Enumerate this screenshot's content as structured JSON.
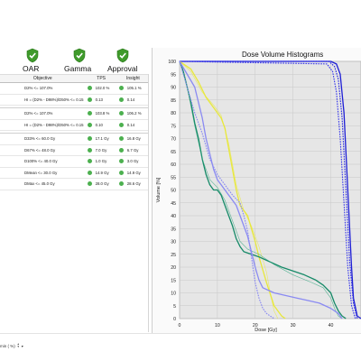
{
  "header": {
    "items": [
      {
        "label": "OAR",
        "status": "pass"
      },
      {
        "label": "Gamma",
        "status": "pass"
      },
      {
        "label": "Approval",
        "status": "pass"
      }
    ]
  },
  "table": {
    "columns": [
      "Objective",
      "TPS",
      "Insight"
    ],
    "groups": [
      [
        {
          "objective": "D2% <= 107.0%",
          "tps": "102.0 %",
          "insight": "105.1 %"
        },
        {
          "objective": "HI = (D2% - D98%)/D50% <= 0.15",
          "tps": "0.13",
          "insight": "0.14"
        }
      ],
      [
        {
          "objective": "D2% <= 107.0%",
          "tps": "103.8 %",
          "insight": "106.2 %"
        },
        {
          "objective": "HI = (D2% - D98%)/D50% <= 0.15",
          "tps": "0.10",
          "insight": "0.14"
        }
      ],
      [
        {
          "objective": "D33% <= 60.0 Gy",
          "tps": "17.1 Gy",
          "insight": "16.8 Gy"
        },
        {
          "objective": "D67% <= 48.0 Gy",
          "tps": "7.0 Gy",
          "insight": "6.7 Gy"
        },
        {
          "objective": "D100% <= 40.0 Gy",
          "tps": "1.0 Gy",
          "insight": "3.0 Gy"
        },
        {
          "objective": "DMean <= 30.0 Gy",
          "tps": "14.9 Gy",
          "insight": "14.9 Gy"
        },
        {
          "objective": "DMax <= 45.0 Gy",
          "tps": "28.0 Gy",
          "insight": "28.6 Gy"
        }
      ]
    ]
  },
  "chart_data": {
    "type": "line",
    "title": "Dose Volume Histograms",
    "xlabel": "Dose [Gy]",
    "ylabel": "Volume [%]",
    "xlim": [
      0,
      48
    ],
    "ylim": [
      0,
      100
    ],
    "x_ticks": [
      0,
      10,
      20,
      30,
      40
    ],
    "y_ticks": [
      0,
      5,
      10,
      15,
      20,
      25,
      30,
      35,
      40,
      45,
      50,
      55,
      60,
      65,
      70,
      75,
      80,
      85,
      90,
      95,
      100
    ],
    "grid": true,
    "series": [
      {
        "color": "#1f1fd6",
        "style": "solid",
        "points": [
          [
            0,
            100
          ],
          [
            40,
            100
          ],
          [
            41.5,
            99
          ],
          [
            42.5,
            95
          ],
          [
            43.5,
            80
          ],
          [
            44.5,
            50
          ],
          [
            45.5,
            20
          ],
          [
            46,
            8
          ],
          [
            47,
            1
          ],
          [
            48,
            0
          ]
        ]
      },
      {
        "color": "#2a2ae0",
        "style": "dots",
        "points": [
          [
            0,
            100
          ],
          [
            39.5,
            100
          ],
          [
            41,
            98
          ],
          [
            42,
            93
          ],
          [
            43,
            78
          ],
          [
            44,
            50
          ],
          [
            45,
            22
          ],
          [
            46,
            6
          ],
          [
            47,
            0
          ]
        ]
      },
      {
        "color": "#3a3aea",
        "style": "dots",
        "points": [
          [
            0,
            100
          ],
          [
            39,
            99
          ],
          [
            40.5,
            96
          ],
          [
            41.5,
            88
          ],
          [
            42.5,
            70
          ],
          [
            43.5,
            45
          ],
          [
            44.5,
            20
          ],
          [
            45.5,
            5
          ],
          [
            46.5,
            0
          ]
        ]
      },
      {
        "color": "#e8e83a",
        "style": "solid",
        "points": [
          [
            0,
            100
          ],
          [
            3,
            97
          ],
          [
            5,
            92
          ],
          [
            7,
            86
          ],
          [
            9,
            82
          ],
          [
            10,
            80
          ],
          [
            11,
            78
          ],
          [
            12,
            74
          ],
          [
            13,
            66
          ],
          [
            14,
            58
          ],
          [
            15,
            50
          ],
          [
            16,
            44
          ],
          [
            18,
            40
          ],
          [
            20,
            30
          ],
          [
            21,
            24
          ],
          [
            23,
            14
          ],
          [
            25,
            5
          ],
          [
            27,
            1
          ],
          [
            28,
            0
          ]
        ]
      },
      {
        "color": "#e8e83a",
        "style": "thin",
        "points": [
          [
            0,
            100
          ],
          [
            3,
            96
          ],
          [
            6,
            88
          ],
          [
            9,
            83
          ],
          [
            11,
            79
          ],
          [
            13,
            68
          ],
          [
            15,
            52
          ],
          [
            17,
            42
          ],
          [
            19,
            36
          ],
          [
            21,
            28
          ],
          [
            23,
            18
          ],
          [
            24,
            10
          ],
          [
            25,
            3
          ],
          [
            26,
            0
          ]
        ]
      },
      {
        "color": "#168a68",
        "style": "solid",
        "points": [
          [
            0,
            100
          ],
          [
            1,
            96
          ],
          [
            2,
            90
          ],
          [
            3,
            84
          ],
          [
            4,
            76
          ],
          [
            5,
            70
          ],
          [
            6,
            62
          ],
          [
            7,
            56
          ],
          [
            8,
            52
          ],
          [
            9,
            50
          ],
          [
            10,
            50
          ],
          [
            11,
            48
          ],
          [
            12,
            44
          ],
          [
            13,
            40
          ],
          [
            14,
            36
          ],
          [
            15,
            31
          ],
          [
            16,
            28
          ],
          [
            17,
            26
          ],
          [
            19,
            25
          ],
          [
            21,
            24
          ],
          [
            24,
            22
          ],
          [
            27,
            20
          ],
          [
            30,
            18.5
          ],
          [
            33,
            17
          ],
          [
            36,
            15
          ],
          [
            38,
            13
          ],
          [
            40,
            10
          ],
          [
            41,
            6
          ],
          [
            42,
            3
          ],
          [
            43,
            1
          ],
          [
            44,
            0
          ]
        ]
      },
      {
        "color": "#2aa37a",
        "style": "thin",
        "points": [
          [
            0,
            100
          ],
          [
            2,
            90
          ],
          [
            4,
            75
          ],
          [
            6,
            62
          ],
          [
            8,
            54
          ],
          [
            10,
            51
          ],
          [
            12,
            46
          ],
          [
            14,
            38
          ],
          [
            16,
            30
          ],
          [
            18,
            27
          ],
          [
            21,
            25
          ],
          [
            25,
            21
          ],
          [
            30,
            17
          ],
          [
            35,
            14
          ],
          [
            38,
            12
          ],
          [
            40,
            8
          ],
          [
            41,
            4
          ],
          [
            42,
            1
          ],
          [
            43,
            0
          ]
        ]
      },
      {
        "color": "#8a8af2",
        "style": "solid",
        "points": [
          [
            0,
            100
          ],
          [
            2,
            95
          ],
          [
            4,
            90
          ],
          [
            6,
            78
          ],
          [
            7,
            70
          ],
          [
            8,
            64
          ],
          [
            9,
            58
          ],
          [
            10,
            54
          ],
          [
            11,
            52
          ],
          [
            12,
            50
          ],
          [
            13,
            48
          ],
          [
            14,
            46
          ],
          [
            15,
            44
          ],
          [
            16,
            40
          ],
          [
            17,
            36
          ],
          [
            18,
            32
          ],
          [
            19,
            26
          ],
          [
            20,
            20
          ],
          [
            21,
            15
          ],
          [
            22,
            12
          ],
          [
            25,
            10
          ],
          [
            28,
            9
          ],
          [
            31,
            8
          ],
          [
            34,
            7
          ],
          [
            37,
            6
          ],
          [
            40,
            4
          ],
          [
            42,
            2
          ],
          [
            43,
            0
          ]
        ]
      },
      {
        "color": "#8a8af2",
        "style": "dots",
        "points": [
          [
            0,
            100
          ],
          [
            2,
            90
          ],
          [
            3,
            85
          ],
          [
            4,
            80
          ],
          [
            6,
            72
          ],
          [
            8,
            62
          ],
          [
            10,
            56
          ],
          [
            12,
            52
          ],
          [
            14,
            48
          ],
          [
            16,
            45
          ],
          [
            17,
            40
          ],
          [
            18,
            34
          ],
          [
            19,
            24
          ],
          [
            20,
            14
          ],
          [
            21,
            8
          ],
          [
            22,
            4
          ],
          [
            23,
            2
          ],
          [
            24,
            1
          ],
          [
            25,
            0
          ]
        ]
      }
    ]
  },
  "bottom": {
    "control_text": "min ( %)"
  }
}
